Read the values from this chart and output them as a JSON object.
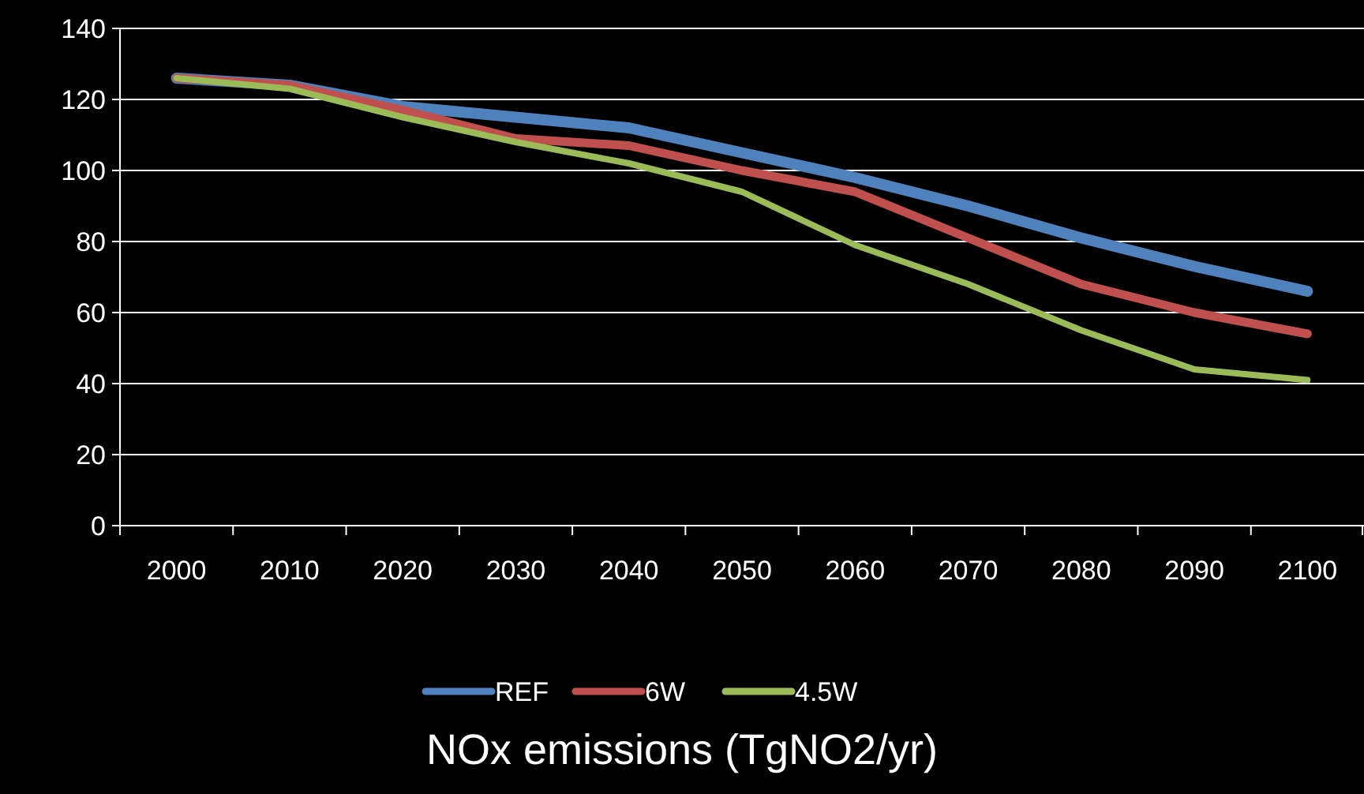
{
  "chart_data": {
    "type": "line",
    "xlabel": "NOx emissions (TgNO2/yr)",
    "categories": [
      "2000",
      "2010",
      "2020",
      "2030",
      "2040",
      "2050",
      "2060",
      "2070",
      "2080",
      "2090",
      "2100"
    ],
    "series": [
      {
        "name": "REF",
        "color": "#4f81bd",
        "values": [
          126,
          124,
          118,
          115,
          112,
          105,
          98,
          90,
          81,
          73,
          66
        ]
      },
      {
        "name": "6W",
        "color": "#c0504d",
        "values": [
          126,
          124,
          117,
          109,
          107,
          100,
          94,
          81,
          68,
          60,
          54
        ]
      },
      {
        "name": "4.5W",
        "color": "#9bbb59",
        "values": [
          126,
          123,
          115,
          108,
          102,
          94,
          79,
          68,
          55,
          44,
          41
        ]
      }
    ],
    "ylim": [
      0,
      140
    ],
    "yticks": [
      0,
      20,
      40,
      60,
      80,
      100,
      120,
      140
    ],
    "grid": "y",
    "legend": "bottom",
    "marker": "none",
    "line_style": "solid"
  }
}
